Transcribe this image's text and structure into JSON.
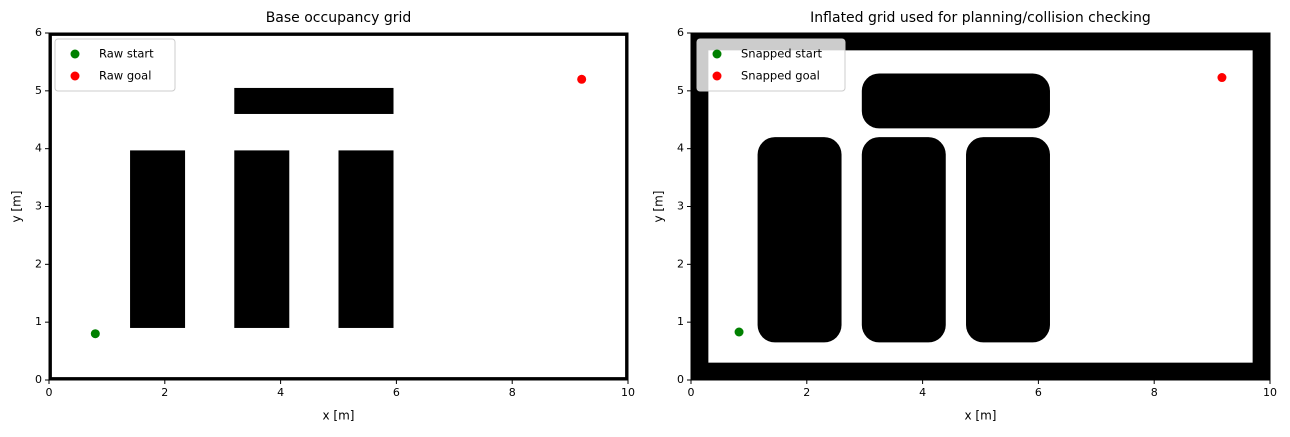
{
  "chart_data": [
    {
      "type": "occupancy",
      "title": "Base occupancy grid",
      "x_label": "x [m]",
      "y_label": "y [m]",
      "xlim": [
        0,
        10
      ],
      "ylim": [
        0,
        6
      ],
      "xticks": [
        0,
        2,
        4,
        6,
        8,
        10
      ],
      "yticks": [
        0,
        1,
        2,
        3,
        4,
        5,
        6
      ],
      "free_space": {
        "x": [
          0.05,
          9.95
        ],
        "y": [
          0.05,
          5.95
        ]
      },
      "obstacles": [
        {
          "x": [
            1.4,
            2.35
          ],
          "y": [
            0.9,
            3.97
          ]
        },
        {
          "x": [
            3.2,
            4.15
          ],
          "y": [
            0.9,
            3.97
          ]
        },
        {
          "x": [
            5.0,
            5.95
          ],
          "y": [
            0.9,
            3.97
          ]
        },
        {
          "x": [
            3.2,
            5.95
          ],
          "y": [
            4.6,
            5.05
          ]
        }
      ],
      "corner_radius": 0,
      "legend": "upper left",
      "series": [
        {
          "name": "Raw start",
          "color": "#008000",
          "x": [
            0.8
          ],
          "values": [
            0.8
          ]
        },
        {
          "name": "Raw goal",
          "color": "#ff0000",
          "x": [
            9.2
          ],
          "values": [
            5.2
          ]
        }
      ]
    },
    {
      "type": "occupancy",
      "title": "Inflated grid used for planning/collision checking",
      "x_label": "x [m]",
      "y_label": "y [m]",
      "xlim": [
        0,
        10
      ],
      "ylim": [
        0,
        6
      ],
      "xticks": [
        0,
        2,
        4,
        6,
        8,
        10
      ],
      "yticks": [
        0,
        1,
        2,
        3,
        4,
        5,
        6
      ],
      "free_space": {
        "x": [
          0.3,
          9.7
        ],
        "y": [
          0.3,
          5.7
        ]
      },
      "obstacles": [
        {
          "x": [
            1.15,
            2.6
          ],
          "y": [
            0.65,
            4.2
          ]
        },
        {
          "x": [
            2.95,
            4.4
          ],
          "y": [
            0.65,
            4.2
          ]
        },
        {
          "x": [
            4.75,
            6.2
          ],
          "y": [
            0.65,
            4.2
          ]
        },
        {
          "x": [
            2.95,
            6.2
          ],
          "y": [
            4.35,
            5.3
          ]
        }
      ],
      "corner_radius": 0.3,
      "legend": "upper left",
      "series": [
        {
          "name": "Snapped start",
          "color": "#008000",
          "x": [
            0.83
          ],
          "values": [
            0.83
          ]
        },
        {
          "name": "Snapped goal",
          "color": "#ff0000",
          "x": [
            9.17
          ],
          "values": [
            5.23
          ]
        }
      ]
    }
  ]
}
